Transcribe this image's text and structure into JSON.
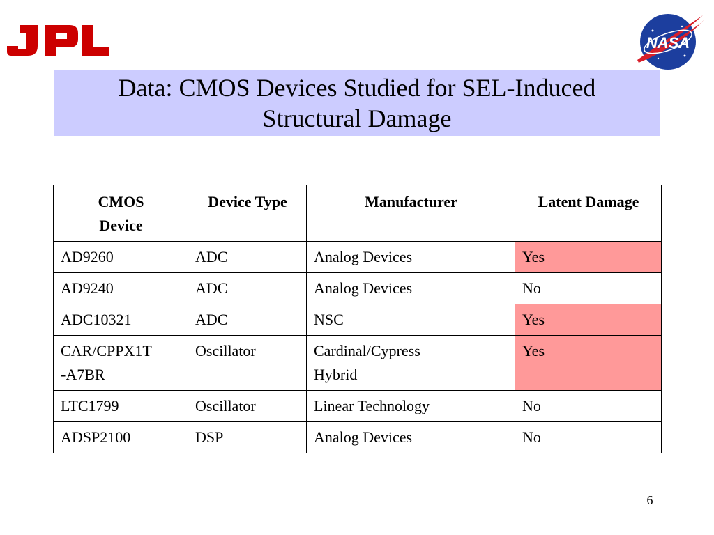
{
  "logos": {
    "jpl_text": "JPL",
    "nasa_text": "NASA",
    "jpl_color": "#cc0000",
    "nasa_blue": "#1c3e9e",
    "nasa_red": "#d81f2a"
  },
  "title": {
    "line1": "Data: CMOS Devices Studied for SEL-Induced",
    "line2": "Structural Damage"
  },
  "table": {
    "headers": {
      "device_line1": "CMOS",
      "device_line2": "Device",
      "type": "Device Type",
      "manufacturer": "Manufacturer",
      "latent": "Latent Damage"
    },
    "rows": [
      {
        "device": "AD9260",
        "type": "ADC",
        "manufacturer": "Analog Devices",
        "latent": "Yes"
      },
      {
        "device": "AD9240",
        "type": "ADC",
        "manufacturer": "Analog Devices",
        "latent": "No"
      },
      {
        "device": "ADC10321",
        "type": "ADC",
        "manufacturer": "NSC",
        "latent": "Yes"
      },
      {
        "device": "CAR/CPPX1T-A7BR",
        "device_line1": "CAR/CPPX1T",
        "device_line2": "-A7BR",
        "type": "Oscillator",
        "manufacturer": "Cardinal/Cypress Hybrid",
        "manufacturer_line1": "Cardinal/Cypress",
        "manufacturer_line2": "Hybrid",
        "latent": "Yes"
      },
      {
        "device": "LTC1799",
        "type": "Oscillator",
        "manufacturer": "Linear Technology",
        "latent": "No"
      },
      {
        "device": "ADSP2100",
        "type": "DSP",
        "manufacturer": "Analog Devices",
        "latent": "No"
      }
    ],
    "highlight_color": "#ff9999"
  },
  "page_number": "6"
}
